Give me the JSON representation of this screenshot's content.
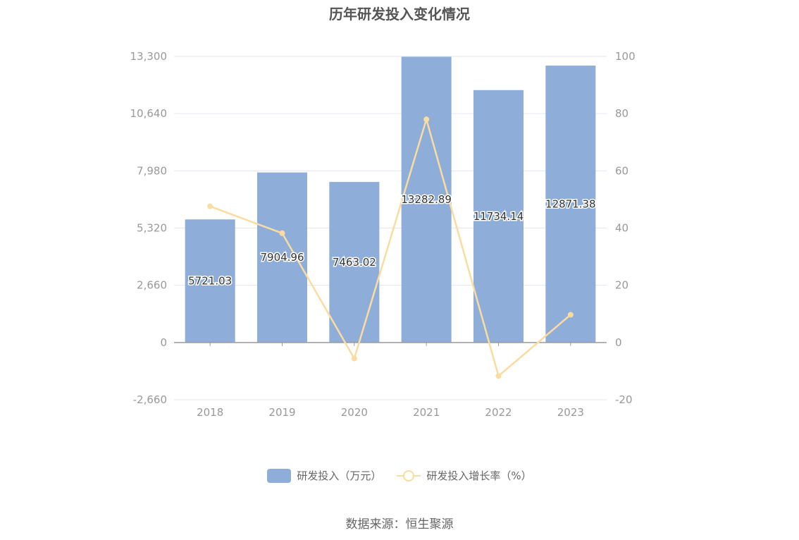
{
  "title": "历年研发投入变化情况",
  "source": "数据来源：恒生聚源",
  "colors": {
    "bar": "#8eadd9",
    "line": "#fbdca0",
    "grid": "#e3e6f2",
    "axis": "#999999"
  },
  "chart_data": {
    "type": "bar",
    "title": "历年研发投入变化情况",
    "categories": [
      "2018",
      "2019",
      "2020",
      "2021",
      "2022",
      "2023"
    ],
    "series": [
      {
        "name": "研发投入（万元）",
        "type": "bar",
        "axis": "left",
        "values": [
          5721.03,
          7904.96,
          7463.02,
          13282.89,
          11734.14,
          12871.38
        ],
        "labels": [
          "5721.03",
          "7904.96",
          "7463.02",
          "13282.89",
          "11734.14",
          "12871.38"
        ]
      },
      {
        "name": "研发投入增长率（%）",
        "type": "line",
        "axis": "right",
        "values": [
          47.6,
          38.2,
          -5.6,
          78.0,
          -11.7,
          9.7
        ]
      }
    ],
    "y_left": {
      "min": -2660,
      "max": 13300,
      "ticks": [
        -2660,
        0,
        2660,
        5320,
        7980,
        10640,
        13300
      ],
      "tick_labels": [
        "-2,660",
        "0",
        "2,660",
        "5,320",
        "7,980",
        "10,640",
        "13,300"
      ]
    },
    "y_right": {
      "min": -20,
      "max": 100,
      "ticks": [
        -20,
        0,
        20,
        40,
        60,
        80,
        100
      ],
      "tick_labels": [
        "-20",
        "0",
        "20",
        "40",
        "60",
        "80",
        "100"
      ]
    },
    "grid": true,
    "legend_position": "bottom"
  }
}
